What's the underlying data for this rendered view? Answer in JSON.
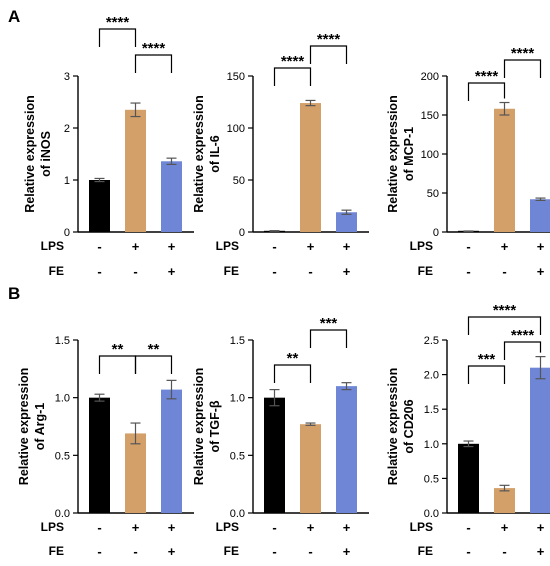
{
  "panels": [
    "A",
    "B"
  ],
  "conditions": [
    {
      "name": "LPS",
      "values": [
        "-",
        "+",
        "+"
      ]
    },
    {
      "name": "FE",
      "values": [
        "-",
        "-",
        "+"
      ]
    }
  ],
  "colors": {
    "control": "#000000",
    "lps": "#d4a06a",
    "lps_fe": "#6f86d6",
    "axis": "#000000",
    "error": "#555555"
  },
  "chart_data": [
    {
      "type": "bar",
      "panel": "A",
      "ylabel_lines": [
        "Relative expression",
        "of iNOS"
      ],
      "ylim": [
        0,
        3
      ],
      "yticks": [
        "0",
        "1",
        "2",
        "3"
      ],
      "values": [
        1.0,
        2.35,
        1.36
      ],
      "errors": [
        0.03,
        0.13,
        0.06
      ],
      "significance": [
        {
          "from": 0,
          "to": 1,
          "label": "****"
        },
        {
          "from": 1,
          "to": 2,
          "label": "****"
        }
      ]
    },
    {
      "type": "bar",
      "panel": "A",
      "ylabel_lines": [
        "Relative expression",
        "of IL-6"
      ],
      "ylim": [
        0,
        150
      ],
      "yticks": [
        "0",
        "50",
        "100",
        "150"
      ],
      "values": [
        1,
        124,
        19
      ],
      "errors": [
        0.3,
        2.5,
        2
      ],
      "significance": [
        {
          "from": 0,
          "to": 1,
          "label": "****"
        },
        {
          "from": 1,
          "to": 2,
          "label": "****"
        }
      ]
    },
    {
      "type": "bar",
      "panel": "A",
      "ylabel_lines": [
        "Relative expression",
        "of MCP-1"
      ],
      "ylim": [
        0,
        200
      ],
      "yticks": [
        "0",
        "50",
        "100",
        "150",
        "200"
      ],
      "values": [
        1,
        158,
        42
      ],
      "errors": [
        0.3,
        8,
        1.5
      ],
      "significance": [
        {
          "from": 0,
          "to": 1,
          "label": "****"
        },
        {
          "from": 1,
          "to": 2,
          "label": "****"
        }
      ]
    },
    {
      "type": "bar",
      "panel": "B",
      "ylabel_lines": [
        "Relative expression",
        "of  Arg-1"
      ],
      "ylim": [
        0,
        1.5
      ],
      "yticks": [
        "0.0",
        "0.5",
        "1.0",
        "1.5"
      ],
      "values": [
        1.0,
        0.69,
        1.07
      ],
      "errors": [
        0.03,
        0.09,
        0.08
      ],
      "significance": [
        {
          "from": 0,
          "to": 1,
          "label": "**"
        },
        {
          "from": 1,
          "to": 2,
          "label": "**"
        }
      ]
    },
    {
      "type": "bar",
      "panel": "B",
      "ylabel_lines": [
        "Relative expression",
        "of  TGF-β"
      ],
      "ylim": [
        0,
        1.5
      ],
      "yticks": [
        "0.0",
        "0.5",
        "1.0",
        "1.5"
      ],
      "values": [
        1.0,
        0.77,
        1.1
      ],
      "errors": [
        0.07,
        0.01,
        0.03
      ],
      "significance": [
        {
          "from": 0,
          "to": 1,
          "label": "**"
        },
        {
          "from": 1,
          "to": 2,
          "label": "***"
        }
      ]
    },
    {
      "type": "bar",
      "panel": "B",
      "ylabel_lines": [
        "Relative expression",
        "of  CD206"
      ],
      "ylim": [
        0,
        2.5
      ],
      "yticks": [
        "0.0",
        "0.5",
        "1.0",
        "1.5",
        "2.0",
        "2.5"
      ],
      "values": [
        1.0,
        0.36,
        2.1
      ],
      "errors": [
        0.04,
        0.04,
        0.16
      ],
      "significance": [
        {
          "from": 1,
          "to": 2,
          "label": "****"
        },
        {
          "from": 0,
          "to": 1,
          "label": "***"
        },
        {
          "from": 0,
          "to": 2,
          "label": "****"
        }
      ]
    }
  ]
}
